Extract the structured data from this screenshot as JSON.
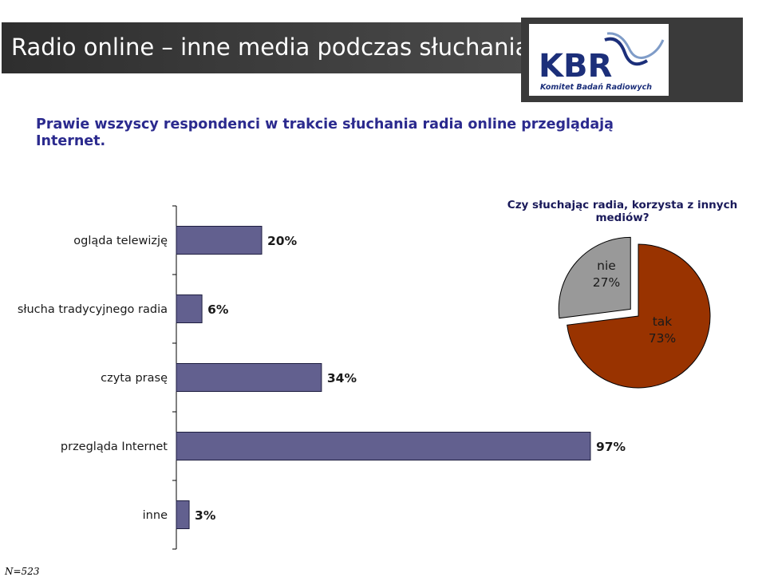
{
  "header": {
    "title": "Radio online – inne media podczas słuchania",
    "logo_text": "KBR",
    "logo_subtext": "Komitet Badań Radiowych"
  },
  "headline": "Prawie wszyscy respondenci w trakcie słuchania radia online przeglądają Internet.",
  "footnote": "N=523",
  "colors": {
    "bar": "#62608f",
    "pie_yes": "#993300",
    "pie_no": "#999999",
    "headline": "#2b2a8e"
  },
  "chart_data": [
    {
      "type": "bar",
      "orientation": "horizontal",
      "categories": [
        "ogląda telewizję",
        "słucha tradycyjnego radia",
        "czyta prasę",
        "przegląda Internet",
        "inne"
      ],
      "values": [
        20,
        6,
        34,
        97,
        3
      ],
      "value_labels": [
        "20%",
        "6%",
        "34%",
        "97%",
        "3%"
      ],
      "unit": "%",
      "xlim": [
        0,
        100
      ],
      "grid": false
    },
    {
      "type": "pie",
      "title": "Czy słuchając radia, korzysta z innych mediów?",
      "slices": [
        {
          "label": "tak",
          "value": 73,
          "text": "73%"
        },
        {
          "label": "nie",
          "value": 27,
          "text": "27%"
        }
      ]
    }
  ]
}
